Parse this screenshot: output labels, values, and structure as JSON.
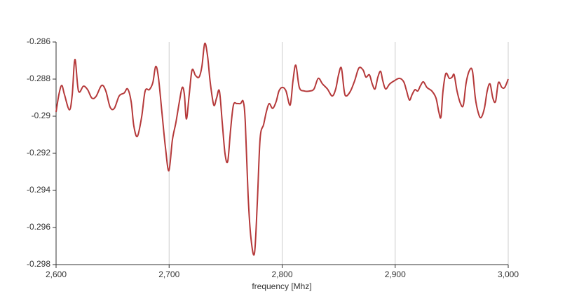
{
  "chart_data": {
    "type": "line",
    "xlabel": "frequency [Mhz]",
    "x": [
      2600,
      2602.5,
      2605,
      2607.4,
      2611.8,
      2614.3,
      2616.7,
      2619.8,
      2624.2,
      2627.9,
      2631.6,
      2635.3,
      2640.3,
      2644,
      2647.8,
      2651.5,
      2655.8,
      2660.2,
      2663.3,
      2666.4,
      2668.8,
      2671.9,
      2675.7,
      2678.8,
      2682.5,
      2685.6,
      2688.1,
      2690.5,
      2693.6,
      2696.7,
      2699.8,
      2702.9,
      2706,
      2709.1,
      2711.6,
      2713.5,
      2715.3,
      2717.8,
      2720.3,
      2723.4,
      2726.5,
      2729,
      2731.5,
      2734,
      2736.4,
      2739.5,
      2742,
      2744.5,
      2747,
      2749.5,
      2751.9,
      2754.4,
      2756.9,
      2760,
      2763.1,
      2765.6,
      2767.4,
      2769.9,
      2772.4,
      2775.5,
      2778,
      2780.5,
      2783.6,
      2786,
      2788.5,
      2791.6,
      2794.7,
      2797.2,
      2800.3,
      2803.4,
      2807.1,
      2809.6,
      2812.1,
      2815.2,
      2819.5,
      2824.5,
      2828.2,
      2831.9,
      2835.7,
      2840,
      2844.3,
      2847.4,
      2849.9,
      2852.4,
      2854.9,
      2856.7,
      2860.5,
      2864.2,
      2867.9,
      2871.6,
      2874.1,
      2877.2,
      2879.7,
      2882.2,
      2884.7,
      2887.1,
      2889,
      2891.5,
      2895.2,
      2899.5,
      2903.9,
      2907.6,
      2910.1,
      2912.6,
      2915,
      2917.5,
      2920,
      2922.5,
      2925,
      2928.1,
      2932.4,
      2936.1,
      2938.6,
      2940.5,
      2942.3,
      2944.8,
      2947.9,
      2950.4,
      2952.2,
      2954.7,
      2957.8,
      2960.3,
      2962.8,
      2965.9,
      2968.4,
      2970.9,
      2973.3,
      2975.8,
      2978.9,
      2981.4,
      2983.9,
      2986.4,
      2988.8,
      2991.3,
      2994.4,
      2996.9,
      3000
    ],
    "series": [
      {
        "color": "#b5393a",
        "values": [
          -0.28977,
          -0.28883,
          -0.28834,
          -0.28883,
          -0.28966,
          -0.28883,
          -0.28694,
          -0.28864,
          -0.28838,
          -0.28857,
          -0.28902,
          -0.28894,
          -0.28834,
          -0.28864,
          -0.28951,
          -0.28958,
          -0.28891,
          -0.28875,
          -0.28853,
          -0.28921,
          -0.29053,
          -0.29109,
          -0.29004,
          -0.28864,
          -0.28857,
          -0.28819,
          -0.28732,
          -0.28789,
          -0.28977,
          -0.29166,
          -0.29294,
          -0.29128,
          -0.29034,
          -0.28921,
          -0.28845,
          -0.28883,
          -0.29015,
          -0.28883,
          -0.28751,
          -0.28781,
          -0.28789,
          -0.28732,
          -0.28608,
          -0.28675,
          -0.28819,
          -0.2894,
          -0.28902,
          -0.28864,
          -0.29034,
          -0.29204,
          -0.29242,
          -0.29072,
          -0.2894,
          -0.28932,
          -0.28932,
          -0.28921,
          -0.29034,
          -0.2943,
          -0.29657,
          -0.2974,
          -0.29468,
          -0.29121,
          -0.29045,
          -0.28977,
          -0.28932,
          -0.28958,
          -0.28921,
          -0.28864,
          -0.28845,
          -0.28864,
          -0.2894,
          -0.28808,
          -0.28725,
          -0.28845,
          -0.28864,
          -0.28864,
          -0.28853,
          -0.28796,
          -0.28826,
          -0.28853,
          -0.28891,
          -0.28853,
          -0.28777,
          -0.2874,
          -0.28864,
          -0.28891,
          -0.28864,
          -0.28808,
          -0.2874,
          -0.28751,
          -0.28789,
          -0.28777,
          -0.28826,
          -0.28853,
          -0.28789,
          -0.28758,
          -0.28808,
          -0.28853,
          -0.28826,
          -0.28808,
          -0.28796,
          -0.28815,
          -0.28864,
          -0.28913,
          -0.28883,
          -0.28857,
          -0.28864,
          -0.28834,
          -0.28815,
          -0.28845,
          -0.28864,
          -0.28902,
          -0.28977,
          -0.29004,
          -0.28864,
          -0.2877,
          -0.28796,
          -0.28789,
          -0.28777,
          -0.28864,
          -0.28932,
          -0.2894,
          -0.28819,
          -0.28751,
          -0.28758,
          -0.28902,
          -0.28977,
          -0.29008,
          -0.28958,
          -0.28864,
          -0.28826,
          -0.28902,
          -0.28921,
          -0.28819,
          -0.28845,
          -0.28845,
          -0.288
        ]
      }
    ],
    "xlim": [
      2600,
      3000
    ],
    "xticks": [
      {
        "value": 2600,
        "label": "2,600"
      },
      {
        "value": 2700,
        "label": "2,700"
      },
      {
        "value": 2800,
        "label": "2,800"
      },
      {
        "value": 2900,
        "label": "2,900"
      },
      {
        "value": 3000,
        "label": "3,000"
      }
    ],
    "ylim": [
      -0.298,
      -0.286
    ],
    "yticks": [
      -0.298,
      -0.296,
      -0.294,
      -0.292,
      -0.29,
      -0.288,
      -0.286
    ],
    "grid": "x"
  }
}
